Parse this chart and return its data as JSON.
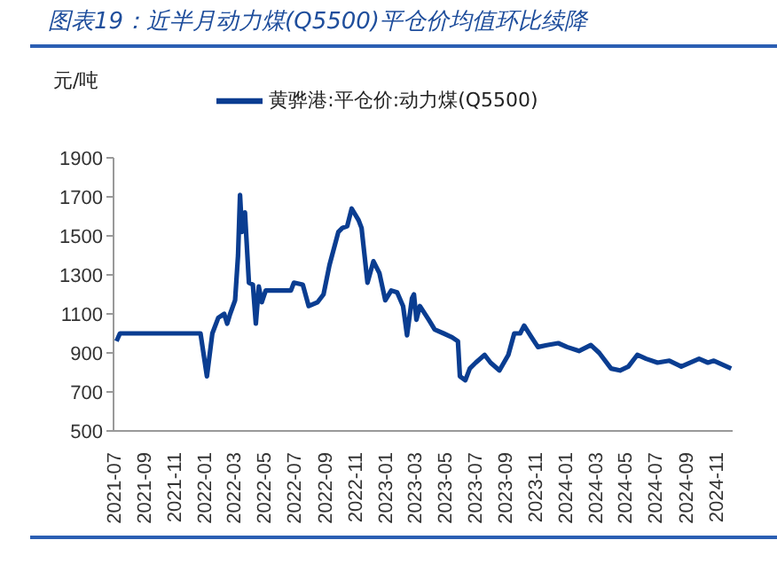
{
  "chart_data": {
    "type": "line",
    "title": "图表19：近半月动力煤(Q5500)平仓价均值环比续降",
    "ylabel": "元/吨",
    "x": [
      "2021-07-07",
      "2021-07-14",
      "2021-12-24",
      "2022-01-06",
      "2022-01-17",
      "2022-01-29",
      "2022-02-10",
      "2022-02-16",
      "2022-02-22",
      "2022-03-04",
      "2022-03-10",
      "2022-03-14",
      "2022-03-18",
      "2022-03-24",
      "2022-04-01",
      "2022-04-09",
      "2022-04-15",
      "2022-04-21",
      "2022-04-27",
      "2022-05-05",
      "2022-05-20",
      "2022-06-25",
      "2022-07-01",
      "2022-07-19",
      "2022-07-31",
      "2022-08-18",
      "2022-08-30",
      "2022-09-11",
      "2022-09-29",
      "2022-10-07",
      "2022-10-17",
      "2022-10-26",
      "2022-11-09",
      "2022-11-15",
      "2022-11-21",
      "2022-11-27",
      "2022-12-09",
      "2022-12-21",
      "2023-01-02",
      "2023-01-14",
      "2023-01-26",
      "2023-02-07",
      "2023-02-15",
      "2023-02-25",
      "2023-03-01",
      "2023-03-06",
      "2023-03-13",
      "2023-03-31",
      "2023-04-12",
      "2023-04-30",
      "2023-05-17",
      "2023-05-29",
      "2023-06-02",
      "2023-06-13",
      "2023-06-22",
      "2023-07-04",
      "2023-07-22",
      "2023-08-03",
      "2023-08-21",
      "2023-09-08",
      "2023-09-20",
      "2023-10-02",
      "2023-10-10",
      "2023-10-25",
      "2023-11-07",
      "2023-11-25",
      "2023-12-18",
      "2024-01-05",
      "2024-01-29",
      "2024-02-22",
      "2024-03-10",
      "2024-04-03",
      "2024-04-21",
      "2024-05-08",
      "2024-05-26",
      "2024-06-13",
      "2024-07-06",
      "2024-07-30",
      "2024-08-23",
      "2024-09-28",
      "2024-10-16",
      "2024-10-28",
      "2024-12-02"
    ],
    "series": [
      {
        "name": "黄骅港:平仓价:动力煤(Q5500)",
        "color": "#0a3d91",
        "values": [
          960,
          1000,
          1000,
          780,
          1000,
          1080,
          1100,
          1050,
          1100,
          1170,
          1400,
          1710,
          1520,
          1620,
          1260,
          1250,
          1050,
          1240,
          1160,
          1220,
          1220,
          1220,
          1260,
          1250,
          1140,
          1160,
          1200,
          1350,
          1520,
          1540,
          1550,
          1640,
          1580,
          1540,
          1400,
          1260,
          1370,
          1310,
          1170,
          1220,
          1210,
          1140,
          990,
          1180,
          1200,
          1070,
          1140,
          1070,
          1020,
          1000,
          980,
          960,
          780,
          760,
          820,
          850,
          890,
          850,
          810,
          890,
          1000,
          1000,
          1040,
          980,
          930,
          940,
          950,
          930,
          910,
          940,
          900,
          820,
          810,
          830,
          890,
          870,
          850,
          860,
          830,
          870,
          850,
          860,
          820
        ]
      }
    ],
    "xlim": [
      "2021-07-01",
      "2024-12-05"
    ],
    "xticks": [
      "2021-07",
      "2021-09",
      "2021-11",
      "2022-01",
      "2022-03",
      "2022-05",
      "2022-07",
      "2022-09",
      "2022-11",
      "2023-01",
      "2023-03",
      "2023-05",
      "2023-07",
      "2023-09",
      "2023-11",
      "2024-01",
      "2024-03",
      "2024-05",
      "2024-07",
      "2024-09",
      "2024-11"
    ],
    "ylim": [
      500,
      1900
    ],
    "yticks": [
      500,
      700,
      900,
      1100,
      1300,
      1500,
      1700,
      1900
    ],
    "legend": "top",
    "grid": false,
    "marker": "none",
    "line_style": "solid"
  }
}
